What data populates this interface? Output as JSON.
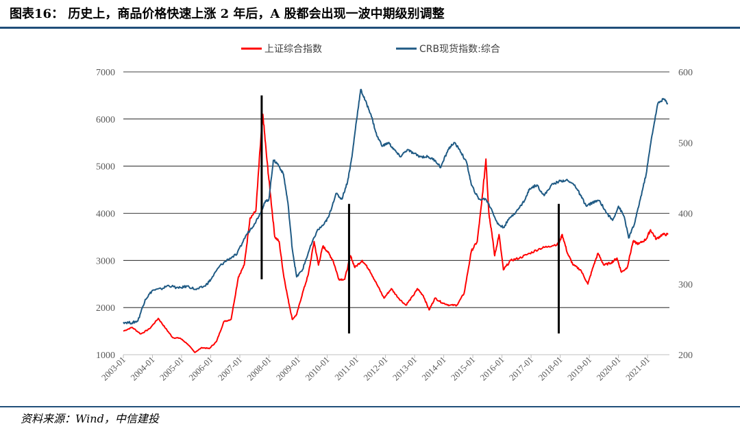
{
  "header": {
    "title": "图表16：  历史上，商品价格快速上涨 2 年后，A 股都会出现一波中期级别调整"
  },
  "footer": {
    "source": "资料来源：Wind，中信建投"
  },
  "colors": {
    "shanghai": "#ff0000",
    "crb": "#1f5a84",
    "marker": "#000000",
    "rule": "#1f4e79"
  },
  "chart_data": {
    "type": "line",
    "title": "历史上，商品价格快速上涨 2 年后，A 股都会出现一波中期级别调整",
    "x_range": [
      2003.0,
      2021.75
    ],
    "x_tick_labels": [
      "2003-01",
      "2004-01",
      "2005-01",
      "2006-01",
      "2007-01",
      "2008-01",
      "2009-01",
      "2010-01",
      "2011-01",
      "2012-01",
      "2013-01",
      "2014-01",
      "2015-01",
      "2016-01",
      "2017-01",
      "2018-01",
      "2019-01",
      "2020-01",
      "2021-01"
    ],
    "y_left": {
      "range": [
        1000,
        7000
      ],
      "ticks": [
        "1000",
        "2000",
        "3000",
        "4000",
        "5000",
        "6000",
        "7000"
      ]
    },
    "y_right": {
      "range": [
        200,
        600
      ],
      "ticks": [
        "200",
        "300",
        "400",
        "500",
        "600"
      ]
    },
    "grid": true,
    "legend_position": "top-center",
    "series": [
      {
        "name": "上证综合指数",
        "axis": "left",
        "points": [
          [
            2003.0,
            1500
          ],
          [
            2003.3,
            1580
          ],
          [
            2003.6,
            1440
          ],
          [
            2003.9,
            1550
          ],
          [
            2004.2,
            1770
          ],
          [
            2004.45,
            1560
          ],
          [
            2004.7,
            1360
          ],
          [
            2004.95,
            1350
          ],
          [
            2005.2,
            1230
          ],
          [
            2005.45,
            1050
          ],
          [
            2005.7,
            1150
          ],
          [
            2005.95,
            1130
          ],
          [
            2006.2,
            1280
          ],
          [
            2006.45,
            1700
          ],
          [
            2006.7,
            1750
          ],
          [
            2006.95,
            2650
          ],
          [
            2007.15,
            2900
          ],
          [
            2007.35,
            3900
          ],
          [
            2007.55,
            4050
          ],
          [
            2007.7,
            5400
          ],
          [
            2007.79,
            6100
          ],
          [
            2007.92,
            5200
          ],
          [
            2008.05,
            4400
          ],
          [
            2008.2,
            3500
          ],
          [
            2008.35,
            3400
          ],
          [
            2008.5,
            2700
          ],
          [
            2008.65,
            2200
          ],
          [
            2008.8,
            1750
          ],
          [
            2008.95,
            1850
          ],
          [
            2009.15,
            2300
          ],
          [
            2009.35,
            2700
          ],
          [
            2009.55,
            3400
          ],
          [
            2009.7,
            2900
          ],
          [
            2009.85,
            3300
          ],
          [
            2010.0,
            3200
          ],
          [
            2010.2,
            3000
          ],
          [
            2010.4,
            2600
          ],
          [
            2010.6,
            2600
          ],
          [
            2010.8,
            3100
          ],
          [
            2010.95,
            2850
          ],
          [
            2011.2,
            3000
          ],
          [
            2011.45,
            2800
          ],
          [
            2011.7,
            2500
          ],
          [
            2011.95,
            2200
          ],
          [
            2012.2,
            2400
          ],
          [
            2012.45,
            2200
          ],
          [
            2012.7,
            2050
          ],
          [
            2012.95,
            2250
          ],
          [
            2013.1,
            2400
          ],
          [
            2013.3,
            2250
          ],
          [
            2013.5,
            1950
          ],
          [
            2013.7,
            2200
          ],
          [
            2013.95,
            2100
          ],
          [
            2014.2,
            2050
          ],
          [
            2014.45,
            2050
          ],
          [
            2014.7,
            2300
          ],
          [
            2014.95,
            3200
          ],
          [
            2015.15,
            3400
          ],
          [
            2015.3,
            4200
          ],
          [
            2015.45,
            5150
          ],
          [
            2015.55,
            4000
          ],
          [
            2015.65,
            3600
          ],
          [
            2015.75,
            3100
          ],
          [
            2015.9,
            3550
          ],
          [
            2016.05,
            2800
          ],
          [
            2016.3,
            3000
          ],
          [
            2016.6,
            3050
          ],
          [
            2016.95,
            3150
          ],
          [
            2017.3,
            3250
          ],
          [
            2017.6,
            3300
          ],
          [
            2017.95,
            3350
          ],
          [
            2018.07,
            3550
          ],
          [
            2018.25,
            3150
          ],
          [
            2018.45,
            2900
          ],
          [
            2018.7,
            2800
          ],
          [
            2018.95,
            2500
          ],
          [
            2019.15,
            2900
          ],
          [
            2019.3,
            3150
          ],
          [
            2019.5,
            2900
          ],
          [
            2019.75,
            2950
          ],
          [
            2019.95,
            3050
          ],
          [
            2020.1,
            2750
          ],
          [
            2020.3,
            2850
          ],
          [
            2020.5,
            3400
          ],
          [
            2020.7,
            3350
          ],
          [
            2020.95,
            3450
          ],
          [
            2021.1,
            3650
          ],
          [
            2021.3,
            3450
          ],
          [
            2021.5,
            3550
          ],
          [
            2021.7,
            3550
          ]
        ]
      },
      {
        "name": "CRB现货指数:综合",
        "axis": "right",
        "points": [
          [
            2003.0,
            246
          ],
          [
            2003.3,
            245
          ],
          [
            2003.5,
            248
          ],
          [
            2003.75,
            278
          ],
          [
            2004.0,
            291
          ],
          [
            2004.3,
            293
          ],
          [
            2004.55,
            298
          ],
          [
            2004.9,
            294
          ],
          [
            2005.2,
            297
          ],
          [
            2005.5,
            292
          ],
          [
            2005.8,
            297
          ],
          [
            2006.0,
            306
          ],
          [
            2006.3,
            325
          ],
          [
            2006.6,
            335
          ],
          [
            2006.9,
            342
          ],
          [
            2007.2,
            368
          ],
          [
            2007.5,
            385
          ],
          [
            2007.7,
            400
          ],
          [
            2007.85,
            415
          ],
          [
            2008.0,
            420
          ],
          [
            2008.15,
            475
          ],
          [
            2008.3,
            470
          ],
          [
            2008.5,
            455
          ],
          [
            2008.65,
            415
          ],
          [
            2008.8,
            350
          ],
          [
            2008.95,
            310
          ],
          [
            2009.15,
            320
          ],
          [
            2009.4,
            350
          ],
          [
            2009.65,
            375
          ],
          [
            2009.9,
            385
          ],
          [
            2010.05,
            395
          ],
          [
            2010.3,
            428
          ],
          [
            2010.5,
            420
          ],
          [
            2010.7,
            445
          ],
          [
            2010.85,
            480
          ],
          [
            2011.0,
            530
          ],
          [
            2011.15,
            575
          ],
          [
            2011.3,
            560
          ],
          [
            2011.5,
            540
          ],
          [
            2011.7,
            510
          ],
          [
            2011.9,
            495
          ],
          [
            2012.1,
            500
          ],
          [
            2012.3,
            490
          ],
          [
            2012.5,
            480
          ],
          [
            2012.75,
            490
          ],
          [
            2012.95,
            485
          ],
          [
            2013.2,
            480
          ],
          [
            2013.45,
            480
          ],
          [
            2013.7,
            475
          ],
          [
            2013.9,
            465
          ],
          [
            2014.15,
            490
          ],
          [
            2014.35,
            500
          ],
          [
            2014.55,
            490
          ],
          [
            2014.8,
            470
          ],
          [
            2014.95,
            440
          ],
          [
            2015.2,
            420
          ],
          [
            2015.45,
            420
          ],
          [
            2015.65,
            405
          ],
          [
            2015.85,
            385
          ],
          [
            2016.05,
            380
          ],
          [
            2016.3,
            395
          ],
          [
            2016.55,
            405
          ],
          [
            2016.8,
            420
          ],
          [
            2016.95,
            435
          ],
          [
            2017.2,
            440
          ],
          [
            2017.45,
            425
          ],
          [
            2017.7,
            440
          ],
          [
            2017.95,
            445
          ],
          [
            2018.2,
            447
          ],
          [
            2018.5,
            440
          ],
          [
            2018.7,
            425
          ],
          [
            2018.9,
            410
          ],
          [
            2019.1,
            415
          ],
          [
            2019.35,
            418
          ],
          [
            2019.6,
            400
          ],
          [
            2019.8,
            390
          ],
          [
            2020.0,
            410
          ],
          [
            2020.2,
            395
          ],
          [
            2020.35,
            365
          ],
          [
            2020.55,
            385
          ],
          [
            2020.75,
            420
          ],
          [
            2020.95,
            455
          ],
          [
            2021.15,
            510
          ],
          [
            2021.35,
            555
          ],
          [
            2021.55,
            562
          ],
          [
            2021.7,
            555
          ]
        ]
      }
    ],
    "markers": [
      {
        "x": 2007.75,
        "y_from": 2600,
        "y_to": 6500
      },
      {
        "x": 2010.75,
        "y_from": 1450,
        "y_to": 4200
      },
      {
        "x": 2017.95,
        "y_from": 1450,
        "y_to": 4200
      }
    ]
  }
}
